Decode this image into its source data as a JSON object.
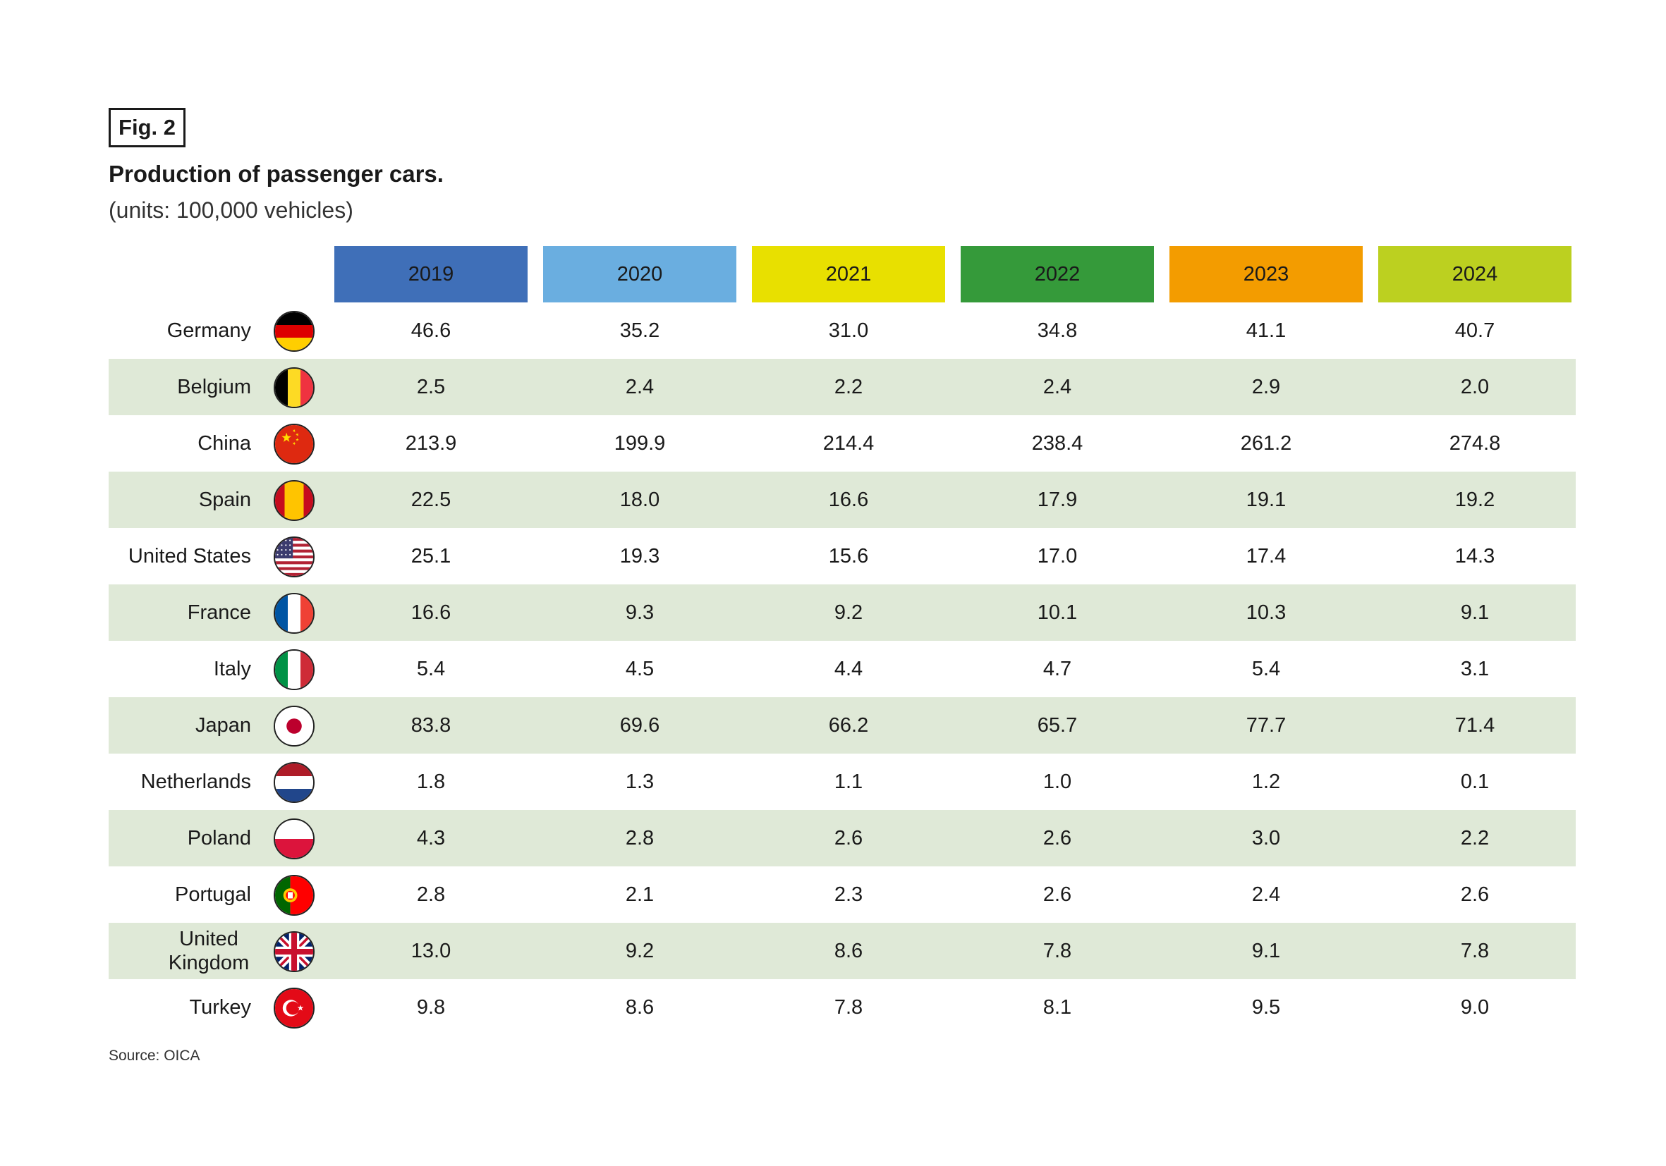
{
  "figure_label": "Fig. 2",
  "chart_data": {
    "type": "table",
    "title": "Production of passenger cars.",
    "subtitle": "(units: 100,000 vehicles)",
    "columns": [
      "2019",
      "2020",
      "2021",
      "2022",
      "2023",
      "2024"
    ],
    "column_colors": [
      "#3f6fb8",
      "#6aaee0",
      "#e8e000",
      "#359a3a",
      "#f39c00",
      "#bcd020"
    ],
    "rows": [
      {
        "country": "Germany",
        "flag": "germany-flag-icon",
        "values": [
          "46.6",
          "35.2",
          "31.0",
          "34.8",
          "41.1",
          "40.7"
        ]
      },
      {
        "country": "Belgium",
        "flag": "belgium-flag-icon",
        "values": [
          "2.5",
          "2.4",
          "2.2",
          "2.4",
          "2.9",
          "2.0"
        ]
      },
      {
        "country": "China",
        "flag": "china-flag-icon",
        "values": [
          "213.9",
          "199.9",
          "214.4",
          "238.4",
          "261.2",
          "274.8"
        ]
      },
      {
        "country": "Spain",
        "flag": "spain-flag-icon",
        "values": [
          "22.5",
          "18.0",
          "16.6",
          "17.9",
          "19.1",
          "19.2"
        ]
      },
      {
        "country": "United States",
        "flag": "united-states-flag-icon",
        "values": [
          "25.1",
          "19.3",
          "15.6",
          "17.0",
          "17.4",
          "14.3"
        ]
      },
      {
        "country": "France",
        "flag": "france-flag-icon",
        "values": [
          "16.6",
          "9.3",
          "9.2",
          "10.1",
          "10.3",
          "9.1"
        ]
      },
      {
        "country": "Italy",
        "flag": "italy-flag-icon",
        "values": [
          "5.4",
          "4.5",
          "4.4",
          "4.7",
          "5.4",
          "3.1"
        ]
      },
      {
        "country": "Japan",
        "flag": "japan-flag-icon",
        "values": [
          "83.8",
          "69.6",
          "66.2",
          "65.7",
          "77.7",
          "71.4"
        ]
      },
      {
        "country": "Netherlands",
        "flag": "netherlands-flag-icon",
        "values": [
          "1.8",
          "1.3",
          "1.1",
          "1.0",
          "1.2",
          "0.1"
        ]
      },
      {
        "country": "Poland",
        "flag": "poland-flag-icon",
        "values": [
          "4.3",
          "2.8",
          "2.6",
          "2.6",
          "3.0",
          "2.2"
        ]
      },
      {
        "country": "Portugal",
        "flag": "portugal-flag-icon",
        "values": [
          "2.8",
          "2.1",
          "2.3",
          "2.6",
          "2.4",
          "2.6"
        ]
      },
      {
        "country": "United Kingdom",
        "flag": "united-kingdom-flag-icon",
        "values": [
          "13.0",
          "9.2",
          "8.6",
          "7.8",
          "9.1",
          "7.8"
        ]
      },
      {
        "country": "Turkey",
        "flag": "turkey-flag-icon",
        "values": [
          "9.8",
          "8.6",
          "7.8",
          "8.1",
          "9.5",
          "9.0"
        ]
      }
    ],
    "row_shading_color": "#dfe9d7",
    "source": "Source: OICA"
  }
}
